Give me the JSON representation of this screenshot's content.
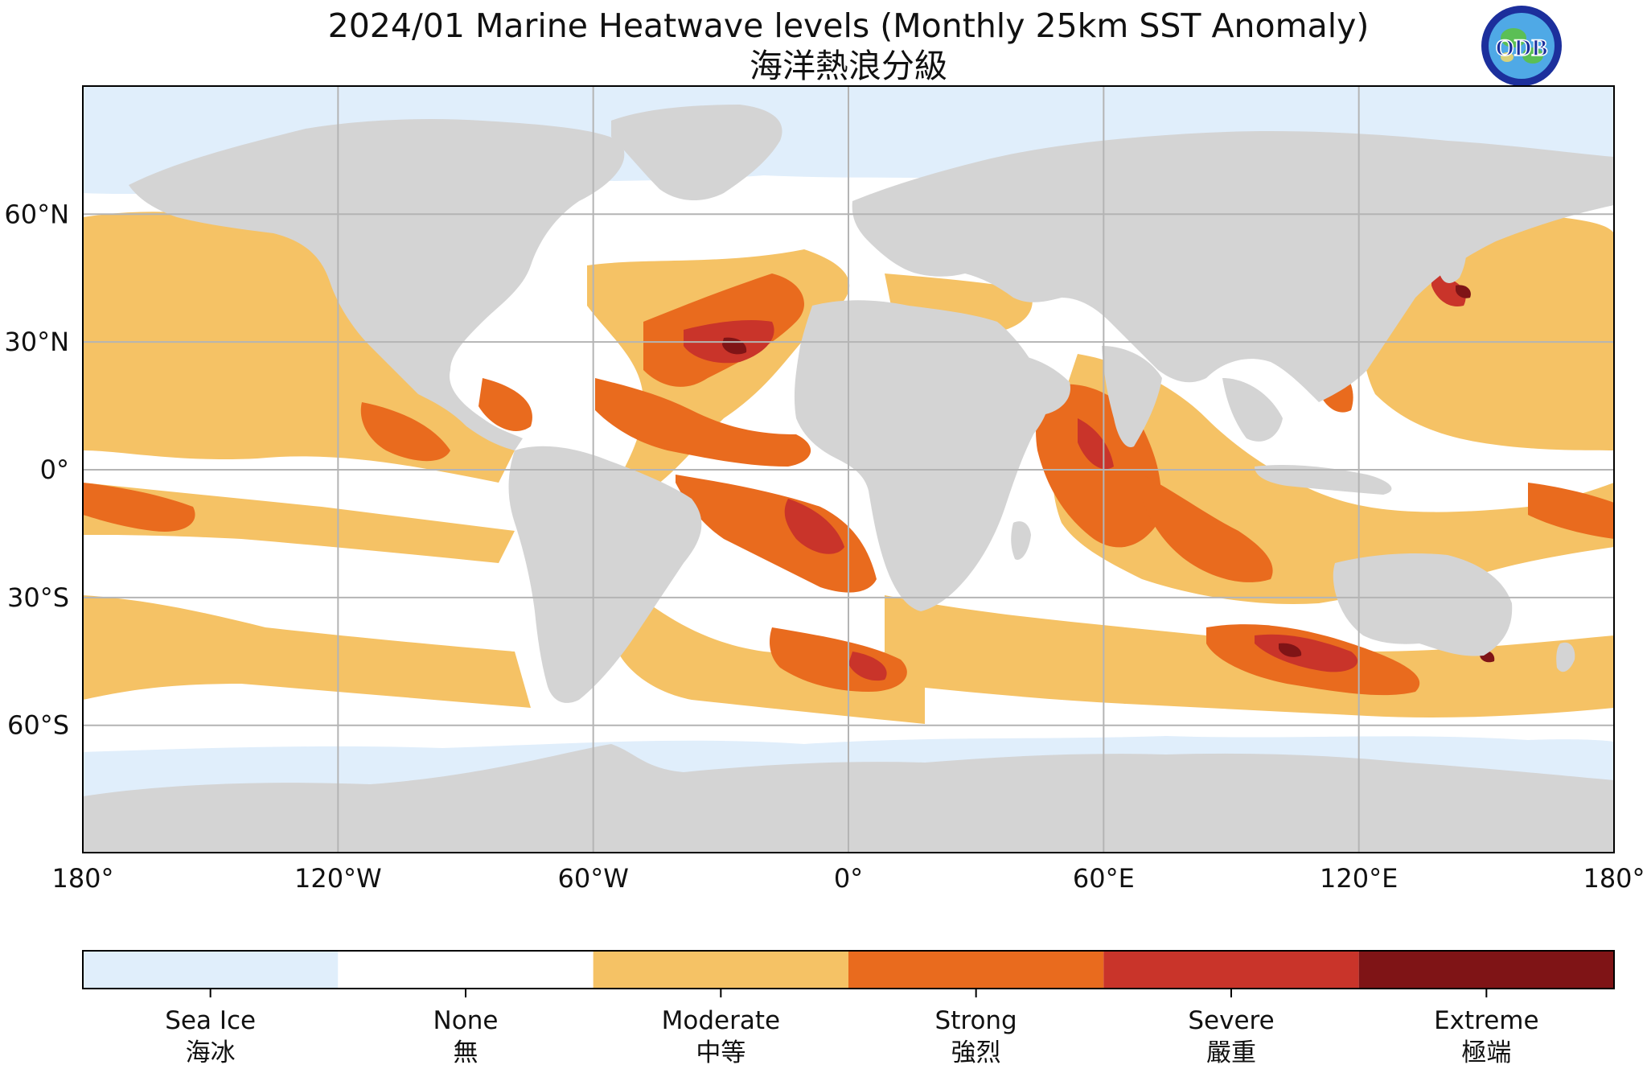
{
  "header": {
    "title": "2024/01 Marine Heatwave levels (Monthly 25km SST Anomaly)",
    "subtitle": "海洋熱浪分級",
    "logo_text": "ODB"
  },
  "map": {
    "lat_labels": [
      "60°N",
      "30°N",
      "0°",
      "30°S",
      "60°S"
    ],
    "lon_labels": [
      "180°",
      "120°W",
      "60°W",
      "0°",
      "60°E",
      "120°E",
      "180°"
    ],
    "grid_lats": [
      60,
      30,
      0,
      -30,
      -60
    ],
    "grid_lons": [
      -180,
      -120,
      -60,
      0,
      60,
      120,
      180
    ]
  },
  "legend": {
    "categories": [
      {
        "en": "Sea Ice",
        "zh": "海冰",
        "color": "#e0eefb"
      },
      {
        "en": "None",
        "zh": "無",
        "color": "#ffffff"
      },
      {
        "en": "Moderate",
        "zh": "中等",
        "color": "#f5c265"
      },
      {
        "en": "Strong",
        "zh": "強烈",
        "color": "#e96b1e"
      },
      {
        "en": "Severe",
        "zh": "嚴重",
        "color": "#c9342a"
      },
      {
        "en": "Extreme",
        "zh": "極端",
        "color": "#7f1416"
      }
    ]
  },
  "colors": {
    "land": "#d4d4d4",
    "grid": "#b4b4b4",
    "frame": "#000000"
  }
}
